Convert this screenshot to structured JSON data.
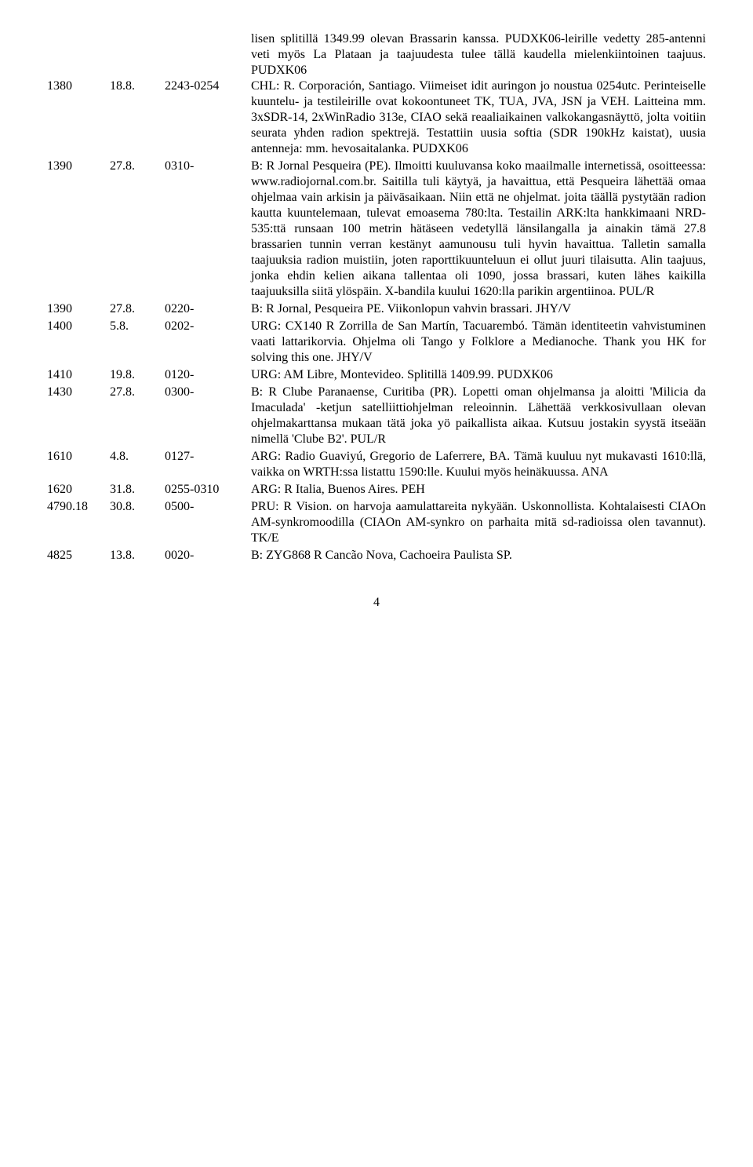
{
  "hanging_intro": "lisen splitillä 1349.99 olevan Brassarin kanssa. PUDXK06-leirille vedetty 285-antenni veti myös La Plataan ja taajuudesta tulee tällä kaudella mielenkiintoinen taajuus. PUDXK06",
  "rows": [
    {
      "freq": "1380",
      "date": "18.8.",
      "time": "2243-0254",
      "desc": "CHL: R. Corporación, Santiago. Viimeiset idit auringon jo noustua 0254utc. Perinteiselle kuuntelu- ja testileirille ovat kokoontuneet TK, TUA, JVA, JSN ja VEH. Laitteina mm. 3xSDR-14, 2xWinRadio 313e, CIAO sekä reaaliaikainen valkokangasnäyttö, jolta voitiin seurata yhden radion spektrejä. Testattiin uusia softia (SDR 190kHz kaistat), uusia antenneja: mm. hevosaitalanka. PUDXK06"
    },
    {
      "freq": "1390",
      "date": "27.8.",
      "time": "0310-",
      "desc": "B: R Jornal Pesqueira (PE). Ilmoitti kuuluvansa koko maailmalle internetissä, osoitteessa: www.radiojornal.com.br. Saitilla tuli käytyä, ja havaittua, että Pesqueira lähettää omaa ohjelmaa vain arkisin ja päiväsaikaan. Niin että ne ohjelmat. joita täällä pystytään radion kautta kuuntelemaan, tulevat emoasema 780:lta. Testailin ARK:lta hankkimaani NRD-535:ttä runsaan 100 metrin hätäseen vedetyllä länsilangalla ja ainakin tämä 27.8 brassarien tunnin verran kestänyt aamunousu tuli hyvin havaittua. Talletin samalla taajuuksia radion muistiin, joten raporttikuunteluun ei ollut juuri tilaisutta. Alin taajuus, jonka ehdin kelien aikana tallentaa oli 1090, jossa brassari, kuten lähes kaikilla taajuuksilla siitä ylöspäin. X-bandila kuului 1620:lla parikin argentiinoa. PUL/R"
    },
    {
      "freq": "1390",
      "date": "27.8.",
      "time": "0220-",
      "desc": "B: R Jornal, Pesqueira PE. Viikonlopun vahvin brassari. JHY/V"
    },
    {
      "freq": "1400",
      "date": "5.8.",
      "time": "0202-",
      "desc": "URG: CX140 R Zorrilla de San Martín, Tacuarembó. Tämän identiteetin vahvistuminen vaati lattarikorvia. Ohjelma oli Tango y Folklore a Medianoche. Thank you HK for solving this one. JHY/V"
    },
    {
      "freq": "1410",
      "date": "19.8.",
      "time": "0120-",
      "desc": "URG: AM Libre, Montevideo. Splitillä 1409.99. PUDXK06"
    },
    {
      "freq": "1430",
      "date": "27.8.",
      "time": "0300-",
      "desc": "B: R Clube Paranaense, Curitiba (PR). Lopetti oman ohjelmansa ja aloitti 'Milicia da Imaculada' -ketjun satelliittiohjelman releoinnin. Lähettää verkkosivullaan olevan ohjelmakarttansa mukaan tätä joka yö paikallista aikaa. Kutsuu jostakin syystä itseään nimellä 'Clube B2'. PUL/R"
    },
    {
      "freq": "1610",
      "date": "4.8.",
      "time": "0127-",
      "desc": "ARG: Radio Guaviyú, Gregorio de Laferrere, BA. Tämä kuuluu nyt mukavasti 1610:llä, vaikka on WRTH:ssa listattu 1590:lle. Kuului myös heinäkuussa. ANA"
    },
    {
      "freq": "1620",
      "date": "31.8.",
      "time": "0255-0310",
      "desc": "ARG: R Italia, Buenos Aires. PEH"
    },
    {
      "freq": "4790.18",
      "date": "30.8.",
      "time": "0500-",
      "desc": "PRU: R Vision. on harvoja aamulattareita nykyään. Uskonnollista. Kohtalaisesti CIAOn AM-synkromoodilla (CIAOn AM-synkro on parhaita mitä sd-radioissa olen tavannut). TK/E"
    },
    {
      "freq": "4825",
      "date": "13.8.",
      "time": "0020-",
      "desc": "B: ZYG868 R Cancão Nova, Cachoeira Paulista SP."
    }
  ],
  "page_number": "4"
}
